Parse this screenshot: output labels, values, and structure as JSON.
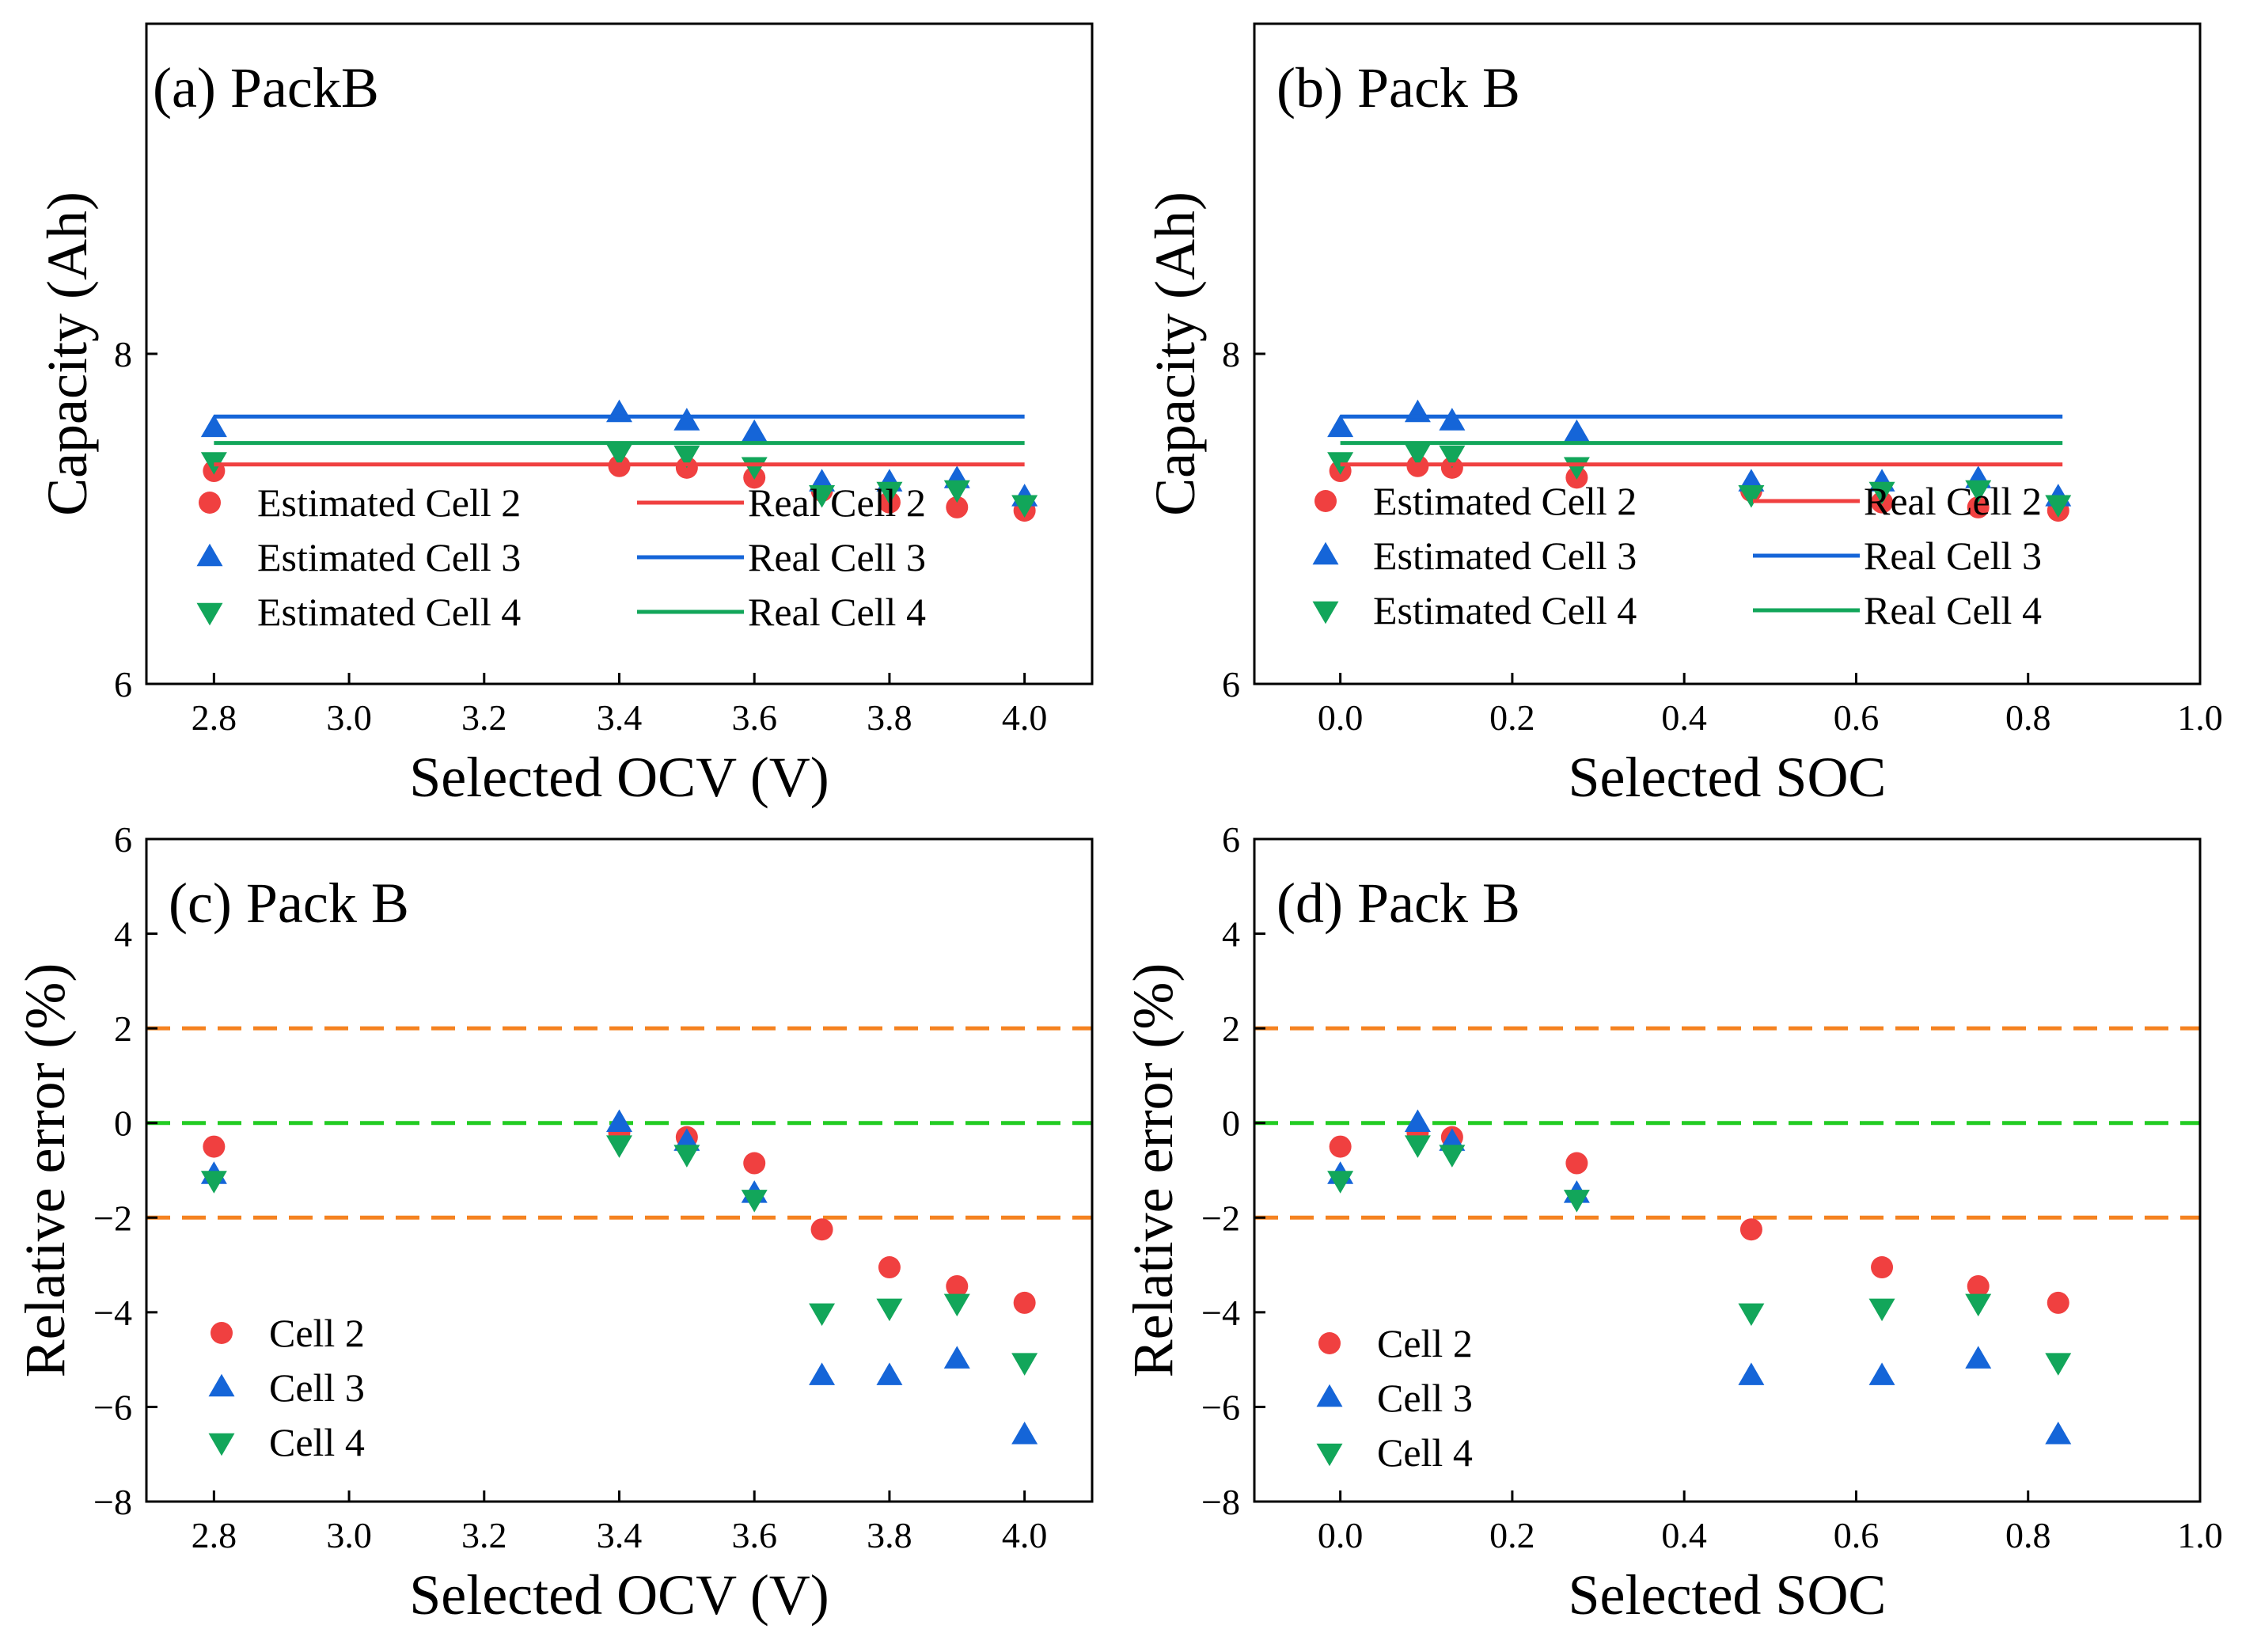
{
  "figure": {
    "colors": {
      "cell2": "#f04040",
      "cell3": "#1565d8",
      "cell4": "#12a65a",
      "ref_orange": "#f58220",
      "ref_green": "#22cc22"
    }
  },
  "chart_data": [
    {
      "id": "a",
      "type": "scatter",
      "title": "(a) PackB",
      "xlabel": "Selected OCV (V)",
      "ylabel": "Capacity (Ah)",
      "xlim": [
        2.7,
        4.1
      ],
      "ylim": [
        6,
        10
      ],
      "xticks": [
        2.8,
        3.0,
        3.2,
        3.4,
        3.6,
        3.8,
        4.0
      ],
      "xticklabels": [
        "2.8",
        "3.0",
        "3.2",
        "3.4",
        "3.6",
        "3.8",
        "4.0"
      ],
      "yticks": [
        6,
        8
      ],
      "yticklabels": [
        "6",
        "8"
      ],
      "legend_columns": 2,
      "legend_position": "lower-left",
      "series": [
        {
          "name": "Estimated Cell 2",
          "kind": "points",
          "marker": "circle",
          "color_key": "cell2",
          "x": [
            2.8,
            3.4,
            3.5,
            3.6,
            3.7,
            3.8,
            3.9,
            4.0
          ],
          "y": [
            7.29,
            7.32,
            7.31,
            7.25,
            7.17,
            7.1,
            7.07,
            7.05
          ]
        },
        {
          "name": "Estimated Cell 3",
          "kind": "points",
          "marker": "triangle-up",
          "color_key": "cell3",
          "x": [
            2.8,
            3.4,
            3.5,
            3.6,
            3.7,
            3.8,
            3.9,
            4.0
          ],
          "y": [
            7.55,
            7.64,
            7.59,
            7.52,
            7.22,
            7.22,
            7.24,
            7.13
          ]
        },
        {
          "name": "Estimated Cell 4",
          "kind": "points",
          "marker": "triangle-down",
          "color_key": "cell4",
          "x": [
            2.8,
            3.4,
            3.5,
            3.6,
            3.7,
            3.8,
            3.9,
            4.0
          ],
          "y": [
            7.35,
            7.4,
            7.39,
            7.32,
            7.15,
            7.17,
            7.18,
            7.09
          ]
        },
        {
          "name": "Real Cell 2",
          "kind": "line",
          "color_key": "cell2",
          "x": [
            2.8,
            4.0
          ],
          "y": [
            7.33,
            7.33
          ]
        },
        {
          "name": "Real Cell 3",
          "kind": "line",
          "color_key": "cell3",
          "x": [
            2.8,
            4.0
          ],
          "y": [
            7.62,
            7.62
          ]
        },
        {
          "name": "Real Cell 4",
          "kind": "line",
          "color_key": "cell4",
          "x": [
            2.8,
            4.0
          ],
          "y": [
            7.46,
            7.46
          ]
        }
      ]
    },
    {
      "id": "b",
      "type": "scatter",
      "title": "(b) Pack B",
      "xlabel": "Selected SOC",
      "ylabel": "Capacity (Ah)",
      "xlim": [
        -0.1,
        1.0
      ],
      "ylim": [
        6,
        10
      ],
      "xticks": [
        0.0,
        0.2,
        0.4,
        0.6,
        0.8,
        1.0
      ],
      "xticklabels": [
        "0.0",
        "0.2",
        "0.4",
        "0.6",
        "0.8",
        "1.0"
      ],
      "yticks": [
        6,
        8
      ],
      "yticklabels": [
        "6",
        "8"
      ],
      "legend_columns": 2,
      "legend_position": "lower-left",
      "series": [
        {
          "name": "Estimated Cell 2",
          "kind": "points",
          "marker": "circle",
          "color_key": "cell2",
          "x": [
            0.0,
            0.09,
            0.13,
            0.275,
            0.478,
            0.63,
            0.742,
            0.835
          ],
          "y": [
            7.29,
            7.32,
            7.31,
            7.25,
            7.17,
            7.1,
            7.07,
            7.05
          ]
        },
        {
          "name": "Estimated Cell 3",
          "kind": "points",
          "marker": "triangle-up",
          "color_key": "cell3",
          "x": [
            0.0,
            0.09,
            0.13,
            0.275,
            0.478,
            0.63,
            0.742,
            0.835
          ],
          "y": [
            7.55,
            7.64,
            7.59,
            7.52,
            7.22,
            7.22,
            7.24,
            7.13
          ]
        },
        {
          "name": "Estimated Cell 4",
          "kind": "points",
          "marker": "triangle-down",
          "color_key": "cell4",
          "x": [
            0.0,
            0.09,
            0.13,
            0.275,
            0.478,
            0.63,
            0.742,
            0.835
          ],
          "y": [
            7.35,
            7.4,
            7.39,
            7.32,
            7.15,
            7.17,
            7.18,
            7.09
          ]
        },
        {
          "name": "Real Cell 2",
          "kind": "line",
          "color_key": "cell2",
          "x": [
            0.0,
            0.84
          ],
          "y": [
            7.33,
            7.33
          ]
        },
        {
          "name": "Real Cell 3",
          "kind": "line",
          "color_key": "cell3",
          "x": [
            0.0,
            0.84
          ],
          "y": [
            7.62,
            7.62
          ]
        },
        {
          "name": "Real Cell 4",
          "kind": "line",
          "color_key": "cell4",
          "x": [
            0.0,
            0.84
          ],
          "y": [
            7.46,
            7.46
          ]
        }
      ]
    },
    {
      "id": "c",
      "type": "scatter",
      "title": "(c) Pack B",
      "xlabel": "Selected OCV (V)",
      "ylabel": "Relative error (%)",
      "xlim": [
        2.7,
        4.1
      ],
      "ylim": [
        -8,
        6
      ],
      "xticks": [
        2.8,
        3.0,
        3.2,
        3.4,
        3.6,
        3.8,
        4.0
      ],
      "xticklabels": [
        "2.8",
        "3.0",
        "3.2",
        "3.4",
        "3.6",
        "3.8",
        "4.0"
      ],
      "yticks": [
        -8,
        -6,
        -4,
        -2,
        0,
        2,
        4,
        6
      ],
      "yticklabels": [
        "−8",
        "−6",
        "−4",
        "−2",
        "0",
        "2",
        "4",
        "6"
      ],
      "legend_columns": 1,
      "legend_position": "lower-left",
      "reference_lines": [
        {
          "y": 2,
          "style": "dashed",
          "color_key": "ref_orange"
        },
        {
          "y": 0,
          "style": "dashed",
          "color_key": "ref_green"
        },
        {
          "y": -2,
          "style": "dashed",
          "color_key": "ref_orange"
        }
      ],
      "series": [
        {
          "name": "Cell 2",
          "kind": "points",
          "marker": "circle",
          "color_key": "cell2",
          "x": [
            2.8,
            3.4,
            3.5,
            3.6,
            3.7,
            3.8,
            3.9,
            4.0
          ],
          "y": [
            -0.5,
            -0.2,
            -0.3,
            -0.85,
            -2.25,
            -3.05,
            -3.45,
            -3.8
          ]
        },
        {
          "name": "Cell 3",
          "kind": "points",
          "marker": "triangle-up",
          "color_key": "cell3",
          "x": [
            2.8,
            3.4,
            3.5,
            3.6,
            3.7,
            3.8,
            3.9,
            4.0
          ],
          "y": [
            -1.1,
            0.0,
            -0.4,
            -1.5,
            -5.35,
            -5.35,
            -5.0,
            -6.6
          ]
        },
        {
          "name": "Cell 4",
          "kind": "points",
          "marker": "triangle-down",
          "color_key": "cell4",
          "x": [
            2.8,
            3.4,
            3.5,
            3.6,
            3.7,
            3.8,
            3.9,
            4.0
          ],
          "y": [
            -1.2,
            -0.45,
            -0.65,
            -1.6,
            -4.0,
            -3.9,
            -3.8,
            -5.05
          ]
        }
      ]
    },
    {
      "id": "d",
      "type": "scatter",
      "title": "(d) Pack B",
      "xlabel": "Selected SOC",
      "ylabel": "Relative error (%)",
      "xlim": [
        -0.1,
        1.0
      ],
      "ylim": [
        -8,
        6
      ],
      "xticks": [
        0.0,
        0.2,
        0.4,
        0.6,
        0.8,
        1.0
      ],
      "xticklabels": [
        "0.0",
        "0.2",
        "0.4",
        "0.6",
        "0.8",
        "1.0"
      ],
      "yticks": [
        -8,
        -6,
        -4,
        -2,
        0,
        2,
        4,
        6
      ],
      "yticklabels": [
        "−8",
        "−6",
        "−4",
        "−2",
        "0",
        "2",
        "4",
        "6"
      ],
      "legend_columns": 1,
      "legend_position": "lower-left",
      "reference_lines": [
        {
          "y": 2,
          "style": "dashed",
          "color_key": "ref_orange"
        },
        {
          "y": 0,
          "style": "dashed",
          "color_key": "ref_green"
        },
        {
          "y": -2,
          "style": "dashed",
          "color_key": "ref_orange"
        }
      ],
      "series": [
        {
          "name": "Cell 2",
          "kind": "points",
          "marker": "circle",
          "color_key": "cell2",
          "x": [
            0.0,
            0.09,
            0.13,
            0.275,
            0.478,
            0.63,
            0.742,
            0.835
          ],
          "y": [
            -0.5,
            -0.2,
            -0.3,
            -0.85,
            -2.25,
            -3.05,
            -3.45,
            -3.8
          ]
        },
        {
          "name": "Cell 3",
          "kind": "points",
          "marker": "triangle-up",
          "color_key": "cell3",
          "x": [
            0.0,
            0.09,
            0.13,
            0.275,
            0.478,
            0.63,
            0.742,
            0.835
          ],
          "y": [
            -1.1,
            0.0,
            -0.4,
            -1.5,
            -5.35,
            -5.35,
            -5.0,
            -6.6
          ]
        },
        {
          "name": "Cell 4",
          "kind": "points",
          "marker": "triangle-down",
          "color_key": "cell4",
          "x": [
            0.0,
            0.09,
            0.13,
            0.275,
            0.478,
            0.63,
            0.742,
            0.835
          ],
          "y": [
            -1.2,
            -0.45,
            -0.65,
            -1.6,
            -4.0,
            -3.9,
            -3.8,
            -5.05
          ]
        }
      ]
    }
  ]
}
